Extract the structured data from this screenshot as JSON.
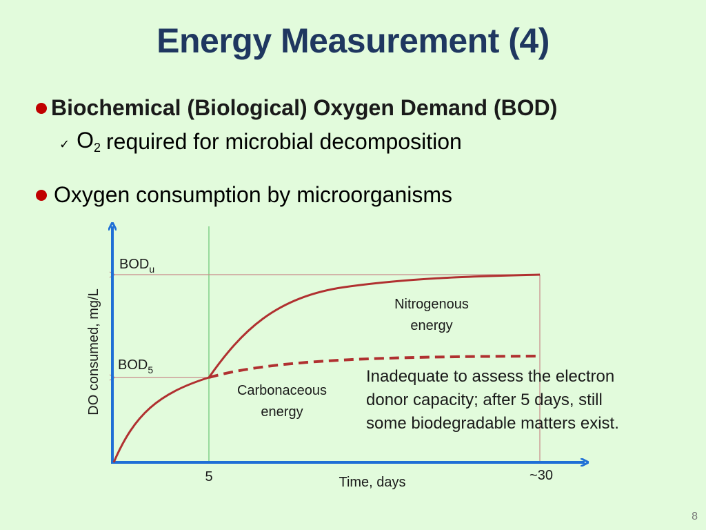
{
  "title": "Energy Measurement (4)",
  "bullets": {
    "bod_heading": "Biochemical (Biological) Oxygen Demand (BOD)",
    "sub_o": "O",
    "sub_2": "2",
    "sub_text": "required for microbial decomposition",
    "consumption": "Oxygen consumption by microorganisms"
  },
  "diagram": {
    "y_axis_label": "DO consumed, mg/L",
    "x_axis_label": "Time, days",
    "bodu": {
      "base": "BOD",
      "sub": "u"
    },
    "bod5": {
      "base": "BOD",
      "sub": "5"
    },
    "tick_5": "5",
    "tick_30": "~30",
    "nitrogenous": [
      "Nitrogenous",
      "energy"
    ],
    "carbonaceous": [
      "Carbonaceous",
      "energy"
    ],
    "note": [
      "Inadequate to assess the electron",
      "donor capacity; after 5 days, still",
      "some biodegradable matters exist."
    ],
    "colors": {
      "axis": "#1f6fd6",
      "curve": "#b03030",
      "guide": "#7fcf86",
      "ref": "#c98a8a"
    }
  },
  "page_number": "8"
}
